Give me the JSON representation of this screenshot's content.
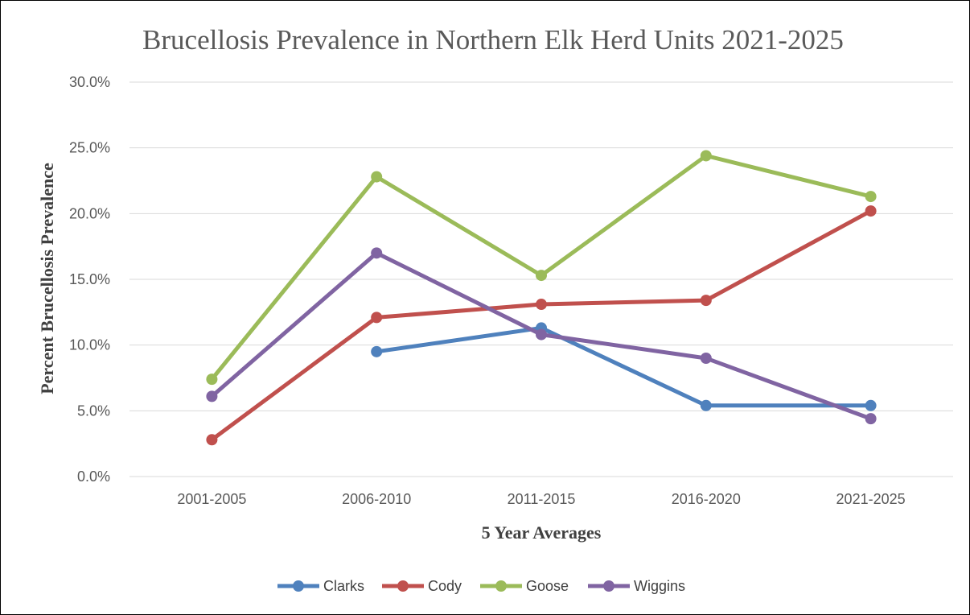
{
  "chart_data": {
    "type": "line",
    "title": "Brucellosis Prevalence in Northern Elk Herd Units 2021-2025",
    "xlabel": "5 Year Averages",
    "ylabel": "Percent Brucellosis Prevalence",
    "categories": [
      "2001-2005",
      "2006-2010",
      "2011-2015",
      "2016-2020",
      "2021-2025"
    ],
    "ylim": [
      0,
      0.3
    ],
    "yticks": [
      0,
      0.05,
      0.1,
      0.15,
      0.2,
      0.25,
      0.3
    ],
    "ytick_labels": [
      "0.0%",
      "5.0%",
      "10.0%",
      "15.0%",
      "20.0%",
      "25.0%",
      "30.0%"
    ],
    "grid": true,
    "legend_position": "bottom",
    "series": [
      {
        "name": "Clarks",
        "color": "#4f81bd",
        "values": [
          null,
          0.095,
          0.113,
          0.054,
          0.054
        ]
      },
      {
        "name": "Cody",
        "color": "#c0504d",
        "values": [
          0.028,
          0.121,
          0.131,
          0.134,
          0.202
        ]
      },
      {
        "name": "Goose",
        "color": "#9bbb59",
        "values": [
          0.074,
          0.228,
          0.153,
          0.244,
          0.213
        ]
      },
      {
        "name": "Wiggins",
        "color": "#8064a2",
        "values": [
          0.061,
          0.17,
          0.108,
          0.09,
          0.044
        ]
      }
    ]
  }
}
